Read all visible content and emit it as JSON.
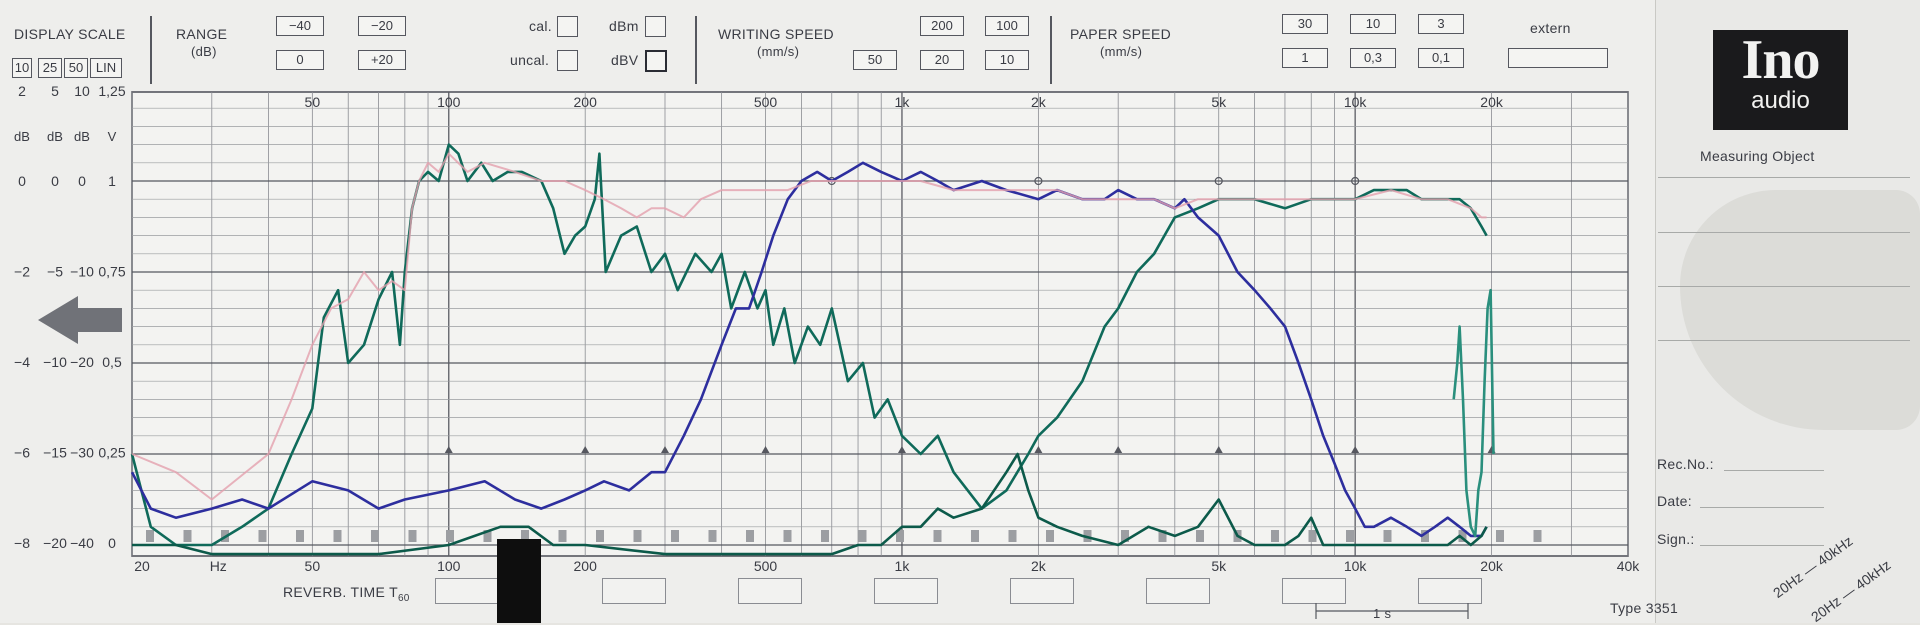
{
  "header": {
    "display_scale": {
      "title": "DISPLAY SCALE",
      "options": [
        "10",
        "25",
        "50",
        "LIN"
      ]
    },
    "range": {
      "title": "RANGE",
      "unit": "(dB)",
      "values": [
        "−40",
        "−20",
        "0",
        "+20"
      ]
    },
    "cal": {
      "cal": "cal.",
      "uncal": "uncal.",
      "dbm": "dBm",
      "dbv": "dBV"
    },
    "writing_speed": {
      "title": "WRITING SPEED",
      "unit": "(mm/s)",
      "values": [
        "200",
        "100",
        "50",
        "20",
        "10"
      ]
    },
    "paper_speed": {
      "title": "PAPER SPEED",
      "unit": "(mm/s)",
      "values": [
        "30",
        "10",
        "3",
        "1",
        "0,3",
        "0,1"
      ],
      "extern": "extern"
    }
  },
  "side": {
    "logo_top": "Ino",
    "logo_bottom": "audio",
    "measuring_object": "Measuring Object",
    "rec_no": "Rec.No.:",
    "date": "Date:",
    "sign": "Sign.:",
    "range_a": "20Hz — 40kHz",
    "range_b": "20Hz — 40kHz",
    "type": "Type 3351"
  },
  "footer": {
    "reverb_label": "REVERB. TIME T",
    "reverb_sub": "60",
    "one_second": "1 s"
  },
  "chart_data": {
    "type": "line",
    "x_scale": "log",
    "xlim": [
      20,
      40000
    ],
    "xlabel": "Hz",
    "x_ticks_top": [
      "50",
      "100",
      "200",
      "500",
      "1k",
      "2k",
      "5k",
      "10k",
      "20k"
    ],
    "x_tick_values_top": [
      50,
      100,
      200,
      500,
      1000,
      2000,
      5000,
      10000,
      20000
    ],
    "x_ticks_bottom": [
      "20",
      "Hz",
      "50",
      "100",
      "200",
      "500",
      "1k",
      "2k",
      "5k",
      "10k",
      "20k",
      "40k"
    ],
    "x_tick_values_bottom": [
      20,
      31,
      50,
      100,
      200,
      500,
      1000,
      2000,
      5000,
      10000,
      20000,
      40000
    ],
    "y_axes": {
      "columns": [
        "2",
        "5",
        "10",
        "1,25"
      ],
      "units": [
        "dB",
        "dB",
        "dB",
        "V"
      ],
      "rows": [
        [
          "0",
          "0",
          "0",
          "1"
        ],
        [
          "−2",
          "−5",
          "−10",
          "0,75"
        ],
        [
          "−4",
          "−10",
          "−20",
          "0,5"
        ],
        [
          "−6",
          "−15",
          "−30",
          "0,25"
        ],
        [
          "−8",
          "−20",
          "−40",
          "0"
        ]
      ]
    },
    "ylim_db": [
      -40,
      6
    ],
    "grid": true,
    "series": [
      {
        "color": "#0f6a5a",
        "values": [
          [
            20,
            -30
          ],
          [
            22,
            -38
          ],
          [
            25,
            -40
          ],
          [
            30,
            -40
          ],
          [
            35,
            -38
          ],
          [
            40,
            -36
          ],
          [
            45,
            -30
          ],
          [
            50,
            -25
          ],
          [
            53,
            -15
          ],
          [
            57,
            -12
          ],
          [
            60,
            -20
          ],
          [
            65,
            -18
          ],
          [
            70,
            -13
          ],
          [
            75,
            -10
          ],
          [
            78,
            -18
          ],
          [
            80,
            -10
          ],
          [
            83,
            -3
          ],
          [
            86,
            0
          ],
          [
            90,
            1
          ],
          [
            95,
            0
          ],
          [
            100,
            4
          ],
          [
            105,
            3
          ],
          [
            110,
            0
          ],
          [
            118,
            2
          ],
          [
            125,
            0
          ],
          [
            135,
            1
          ],
          [
            145,
            1
          ],
          [
            160,
            0
          ],
          [
            170,
            -3
          ],
          [
            180,
            -8
          ],
          [
            190,
            -6
          ],
          [
            200,
            -5
          ],
          [
            210,
            -2
          ],
          [
            215,
            3
          ],
          [
            222,
            -10
          ],
          [
            240,
            -6
          ],
          [
            260,
            -5
          ],
          [
            280,
            -10
          ],
          [
            300,
            -8
          ],
          [
            320,
            -12
          ],
          [
            350,
            -8
          ],
          [
            380,
            -10
          ],
          [
            400,
            -8
          ],
          [
            420,
            -14
          ],
          [
            450,
            -10
          ],
          [
            480,
            -14
          ],
          [
            500,
            -12
          ],
          [
            520,
            -18
          ],
          [
            550,
            -14
          ],
          [
            580,
            -20
          ],
          [
            620,
            -16
          ],
          [
            660,
            -18
          ],
          [
            700,
            -14
          ],
          [
            760,
            -22
          ],
          [
            820,
            -20
          ],
          [
            870,
            -26
          ],
          [
            930,
            -24
          ],
          [
            1000,
            -28
          ],
          [
            1100,
            -30
          ],
          [
            1200,
            -28
          ],
          [
            1300,
            -32
          ],
          [
            1500,
            -36
          ],
          [
            1700,
            -34
          ],
          [
            1900,
            -30
          ],
          [
            2000,
            -28
          ],
          [
            2200,
            -26
          ],
          [
            2500,
            -22
          ],
          [
            2800,
            -16
          ],
          [
            3000,
            -14
          ],
          [
            3300,
            -10
          ],
          [
            3600,
            -8
          ],
          [
            4000,
            -4
          ],
          [
            4500,
            -3
          ],
          [
            5000,
            -2
          ],
          [
            6000,
            -2
          ],
          [
            7000,
            -3
          ],
          [
            8000,
            -2
          ],
          [
            9000,
            -2
          ],
          [
            10000,
            -2
          ],
          [
            11000,
            -1
          ],
          [
            12000,
            -1
          ],
          [
            13000,
            -1
          ],
          [
            14000,
            -2
          ],
          [
            15000,
            -2
          ],
          [
            16000,
            -2
          ],
          [
            17000,
            -2
          ],
          [
            18000,
            -3
          ],
          [
            19000,
            -5
          ],
          [
            19500,
            -6
          ]
        ]
      },
      {
        "color": "#2d2e9e",
        "values": [
          [
            20,
            -32
          ],
          [
            22,
            -36
          ],
          [
            25,
            -37
          ],
          [
            30,
            -36
          ],
          [
            35,
            -35
          ],
          [
            40,
            -36
          ],
          [
            50,
            -33
          ],
          [
            60,
            -34
          ],
          [
            70,
            -36
          ],
          [
            80,
            -35
          ],
          [
            100,
            -34
          ],
          [
            120,
            -33
          ],
          [
            140,
            -35
          ],
          [
            160,
            -36
          ],
          [
            180,
            -35
          ],
          [
            200,
            -34
          ],
          [
            220,
            -33
          ],
          [
            250,
            -34
          ],
          [
            280,
            -32
          ],
          [
            300,
            -32
          ],
          [
            330,
            -28
          ],
          [
            360,
            -24
          ],
          [
            400,
            -18
          ],
          [
            430,
            -14
          ],
          [
            460,
            -14
          ],
          [
            490,
            -10
          ],
          [
            520,
            -6
          ],
          [
            560,
            -2
          ],
          [
            600,
            0
          ],
          [
            650,
            1
          ],
          [
            700,
            0
          ],
          [
            760,
            1
          ],
          [
            820,
            2
          ],
          [
            900,
            1
          ],
          [
            1000,
            0
          ],
          [
            1100,
            1
          ],
          [
            1200,
            0
          ],
          [
            1300,
            -1
          ],
          [
            1500,
            0
          ],
          [
            1700,
            -1
          ],
          [
            2000,
            -2
          ],
          [
            2200,
            -1
          ],
          [
            2500,
            -2
          ],
          [
            2800,
            -2
          ],
          [
            3000,
            -1
          ],
          [
            3300,
            -2
          ],
          [
            3600,
            -2
          ],
          [
            4000,
            -3
          ],
          [
            4200,
            -2
          ],
          [
            4500,
            -4
          ],
          [
            5000,
            -6
          ],
          [
            5500,
            -10
          ],
          [
            6000,
            -12
          ],
          [
            6500,
            -14
          ],
          [
            7000,
            -16
          ],
          [
            7500,
            -20
          ],
          [
            8000,
            -24
          ],
          [
            8500,
            -28
          ],
          [
            9000,
            -31
          ],
          [
            9500,
            -34
          ],
          [
            10000,
            -36
          ],
          [
            10500,
            -38
          ],
          [
            11000,
            -38
          ],
          [
            12000,
            -37
          ],
          [
            13000,
            -38
          ],
          [
            14000,
            -39
          ],
          [
            15000,
            -38
          ],
          [
            16000,
            -37
          ],
          [
            17000,
            -38
          ],
          [
            18000,
            -39
          ],
          [
            19000,
            -39
          ],
          [
            19500,
            -38
          ]
        ]
      },
      {
        "color": "#e3a0ae",
        "values": [
          [
            20,
            -30
          ],
          [
            25,
            -32
          ],
          [
            30,
            -35
          ],
          [
            40,
            -30
          ],
          [
            45,
            -24
          ],
          [
            50,
            -18
          ],
          [
            55,
            -14
          ],
          [
            60,
            -13
          ],
          [
            65,
            -10
          ],
          [
            70,
            -12
          ],
          [
            75,
            -11
          ],
          [
            80,
            -12
          ],
          [
            83,
            -3
          ],
          [
            86,
            0
          ],
          [
            90,
            2
          ],
          [
            95,
            1
          ],
          [
            100,
            3
          ],
          [
            110,
            1
          ],
          [
            120,
            2
          ],
          [
            140,
            1
          ],
          [
            160,
            0
          ],
          [
            180,
            0
          ],
          [
            200,
            -1
          ],
          [
            220,
            -2
          ],
          [
            240,
            -3
          ],
          [
            260,
            -4
          ],
          [
            280,
            -3
          ],
          [
            300,
            -3
          ],
          [
            330,
            -4
          ],
          [
            360,
            -2
          ],
          [
            400,
            -1
          ],
          [
            450,
            -1
          ],
          [
            500,
            -1
          ],
          [
            560,
            -1
          ],
          [
            630,
            0
          ],
          [
            710,
            0
          ],
          [
            800,
            0
          ],
          [
            900,
            0
          ],
          [
            1000,
            0
          ],
          [
            1100,
            0
          ],
          [
            1300,
            -1
          ],
          [
            1500,
            -1
          ],
          [
            1800,
            -1
          ],
          [
            2000,
            -1
          ],
          [
            2200,
            -1
          ],
          [
            2500,
            -2
          ],
          [
            2800,
            -2
          ],
          [
            3200,
            -2
          ],
          [
            3600,
            -2
          ],
          [
            4000,
            -3
          ],
          [
            4500,
            -2
          ],
          [
            5000,
            -2
          ],
          [
            6000,
            -2
          ],
          [
            7000,
            -2
          ],
          [
            8000,
            -2
          ],
          [
            9000,
            -2
          ],
          [
            10000,
            -2
          ],
          [
            12000,
            -1
          ],
          [
            14000,
            -2
          ],
          [
            16000,
            -2
          ],
          [
            18000,
            -3
          ],
          [
            19000,
            -4
          ],
          [
            19500,
            -4
          ]
        ]
      },
      {
        "color": "#0c5a4a",
        "values": [
          [
            20,
            -40
          ],
          [
            25,
            -40
          ],
          [
            30,
            -41
          ],
          [
            40,
            -41
          ],
          [
            50,
            -41
          ],
          [
            70,
            -41
          ],
          [
            100,
            -40
          ],
          [
            130,
            -38
          ],
          [
            150,
            -38
          ],
          [
            170,
            -40
          ],
          [
            200,
            -40
          ],
          [
            300,
            -41
          ],
          [
            400,
            -41
          ],
          [
            500,
            -41
          ],
          [
            600,
            -41
          ],
          [
            700,
            -41
          ],
          [
            800,
            -40
          ],
          [
            900,
            -40
          ],
          [
            1000,
            -38
          ],
          [
            1100,
            -38
          ],
          [
            1200,
            -36
          ],
          [
            1300,
            -37
          ],
          [
            1500,
            -36
          ],
          [
            1700,
            -32
          ],
          [
            1800,
            -30
          ],
          [
            1900,
            -34
          ],
          [
            2000,
            -37
          ],
          [
            2200,
            -38
          ],
          [
            2500,
            -39
          ],
          [
            3000,
            -40
          ],
          [
            3500,
            -38
          ],
          [
            4000,
            -39
          ],
          [
            4500,
            -38
          ],
          [
            5000,
            -35
          ],
          [
            5500,
            -39
          ],
          [
            6000,
            -40
          ],
          [
            7000,
            -40
          ],
          [
            7500,
            -39
          ],
          [
            8000,
            -37
          ],
          [
            8500,
            -40
          ],
          [
            9000,
            -40
          ],
          [
            10000,
            -40
          ],
          [
            11000,
            -40
          ],
          [
            12000,
            -40
          ],
          [
            14000,
            -40
          ],
          [
            16000,
            -40
          ],
          [
            17000,
            -39
          ],
          [
            18000,
            -40
          ],
          [
            19000,
            -39
          ],
          [
            19500,
            -38
          ]
        ]
      },
      {
        "color": "#2a8f7d",
        "values": [
          [
            16500,
            -24
          ],
          [
            16800,
            -20
          ],
          [
            17000,
            -16
          ],
          [
            17300,
            -24
          ],
          [
            17600,
            -34
          ],
          [
            18000,
            -38
          ],
          [
            18400,
            -39
          ],
          [
            18700,
            -34
          ],
          [
            19000,
            -32
          ],
          [
            19300,
            -22
          ],
          [
            19600,
            -14
          ],
          [
            19900,
            -12
          ],
          [
            20200,
            -30
          ]
        ]
      }
    ]
  }
}
